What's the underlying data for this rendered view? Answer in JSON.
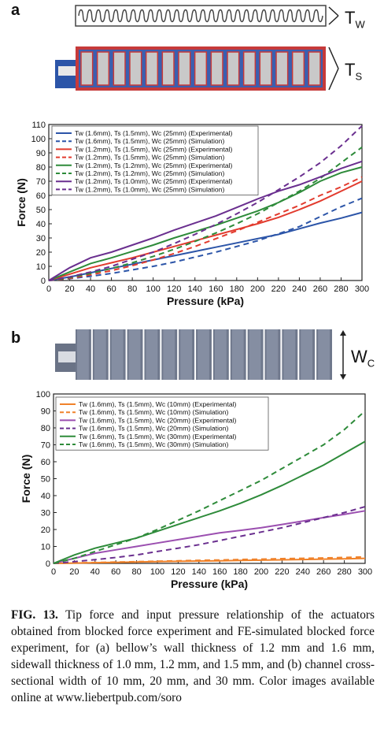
{
  "panel_a": {
    "letter": "a",
    "tw_symbol": "T",
    "tw_sub": "W",
    "ts_symbol": "T",
    "ts_sub": "S"
  },
  "panel_b": {
    "letter": "b",
    "wc_symbol": "W",
    "wc_sub": "C"
  },
  "chart_data": [
    {
      "type": "line",
      "xlabel": "Pressure (kPa)",
      "ylabel": "Force (N)",
      "xlim": [
        0,
        300
      ],
      "ylim": [
        0,
        110
      ],
      "xticks": [
        "0",
        "20",
        "40",
        "60",
        "80",
        "100",
        "120",
        "140",
        "160",
        "180",
        "200",
        "220",
        "240",
        "260",
        "280",
        "300"
      ],
      "yticks": [
        "0",
        "10",
        "20",
        "30",
        "40",
        "50",
        "60",
        "70",
        "80",
        "90",
        "100",
        "110"
      ],
      "legend_position": "top-left",
      "series": [
        {
          "name": "Tw (1.6mm), Ts (1.5mm), Wc (25mm) (Experimental)",
          "color": "#2c55a8",
          "dash": false,
          "x": [
            0,
            20,
            40,
            60,
            80,
            100,
            120,
            140,
            160,
            180,
            200,
            220,
            240,
            260,
            280,
            300
          ],
          "y": [
            0,
            2.5,
            5.5,
            8.5,
            11.5,
            14.5,
            17.5,
            20.5,
            23.5,
            26.5,
            29.5,
            32.5,
            36.5,
            40.5,
            44,
            48
          ]
        },
        {
          "name": "Tw (1.6mm), Ts (1.5mm), Wc (25mm) (Simulation)",
          "color": "#2c55a8",
          "dash": true,
          "x": [
            0,
            20,
            40,
            60,
            80,
            100,
            120,
            140,
            160,
            180,
            200,
            220,
            240,
            260,
            280,
            300
          ],
          "y": [
            0,
            1.3,
            3,
            5,
            7.5,
            10,
            13,
            16.5,
            20,
            24,
            28,
            33,
            38,
            45,
            52,
            58
          ]
        },
        {
          "name": "Tw (1.2mm), Ts (1.5mm), Wc (25mm) (Experimental)",
          "color": "#e23b2e",
          "dash": false,
          "x": [
            0,
            20,
            40,
            60,
            80,
            100,
            120,
            140,
            160,
            180,
            200,
            220,
            240,
            260,
            280,
            300
          ],
          "y": [
            0,
            4.5,
            9,
            12.5,
            16,
            20,
            24,
            28,
            32,
            36,
            40,
            44.5,
            50,
            56,
            63,
            70
          ]
        },
        {
          "name": "Tw (1.2mm), Ts (1.5mm), Wc (25mm) (Simulation)",
          "color": "#e23b2e",
          "dash": true,
          "x": [
            0,
            20,
            40,
            60,
            80,
            100,
            120,
            140,
            160,
            180,
            200,
            220,
            240,
            260,
            280,
            300
          ],
          "y": [
            0,
            1.5,
            4,
            7,
            10.5,
            14.5,
            19,
            24,
            29.5,
            35,
            41,
            47,
            53,
            60,
            66,
            73
          ]
        },
        {
          "name": "Tw (1.2mm), Ts (1.2mm), Wc (25mm) (Experimental)",
          "color": "#2e8b3a",
          "dash": false,
          "x": [
            0,
            20,
            40,
            60,
            80,
            100,
            120,
            140,
            160,
            180,
            200,
            220,
            240,
            260,
            280,
            300
          ],
          "y": [
            0,
            6,
            12,
            16,
            20.5,
            25,
            30,
            34.5,
            39,
            44,
            49,
            55,
            62,
            70,
            76,
            80
          ]
        },
        {
          "name": "Tw (1.2mm), Ts (1.2mm), Wc (25mm) (Simulation)",
          "color": "#2e8b3a",
          "dash": true,
          "x": [
            0,
            20,
            40,
            60,
            80,
            100,
            120,
            140,
            160,
            180,
            200,
            220,
            240,
            260,
            280,
            300
          ],
          "y": [
            0,
            2,
            5,
            8.5,
            12.5,
            17,
            22,
            27.5,
            33.5,
            40,
            47,
            55,
            63,
            72,
            83,
            94
          ]
        },
        {
          "name": "Tw (1.2mm), Ts (1.0mm), Wc (25mm) (Experimental)",
          "color": "#6a2f8f",
          "dash": false,
          "x": [
            0,
            20,
            40,
            60,
            80,
            100,
            120,
            140,
            160,
            180,
            200,
            220,
            240,
            260,
            280,
            300
          ],
          "y": [
            0,
            9,
            16,
            20,
            25,
            30,
            35.5,
            40.5,
            45.5,
            51.5,
            57.5,
            63,
            67.5,
            73,
            79,
            84
          ]
        },
        {
          "name": "Tw (1.2mm), Ts (1.0mm), Wc (25mm) (Simulation)",
          "color": "#6a2f8f",
          "dash": true,
          "x": [
            0,
            20,
            40,
            60,
            80,
            100,
            120,
            140,
            160,
            180,
            200,
            220,
            240,
            260,
            280,
            300
          ],
          "y": [
            0,
            2.5,
            6,
            10,
            15,
            20,
            26,
            32.5,
            39.5,
            47,
            55,
            64,
            73,
            83,
            95,
            109
          ]
        }
      ]
    },
    {
      "type": "line",
      "xlabel": "Pressure (kPa)",
      "ylabel": "Force (N)",
      "xlim": [
        0,
        300
      ],
      "ylim": [
        0,
        100
      ],
      "xticks": [
        "0",
        "20",
        "40",
        "60",
        "80",
        "100",
        "120",
        "140",
        "160",
        "180",
        "200",
        "220",
        "240",
        "260",
        "280",
        "300"
      ],
      "yticks": [
        "0",
        "10",
        "20",
        "30",
        "40",
        "50",
        "60",
        "70",
        "80",
        "90",
        "100"
      ],
      "legend_position": "top-left",
      "series": [
        {
          "name": "Tw (1.6mm), Ts (1.5mm), Wc (10mm) (Experimental)",
          "color": "#f0822a",
          "dash": false,
          "x": [
            0,
            20,
            40,
            60,
            80,
            100,
            120,
            140,
            160,
            180,
            200,
            220,
            240,
            260,
            280,
            300
          ],
          "y": [
            0,
            0.2,
            0.4,
            0.6,
            0.8,
            1,
            1.2,
            1.4,
            1.5,
            1.7,
            1.9,
            2.1,
            2.3,
            2.5,
            2.7,
            3
          ]
        },
        {
          "name": "Tw (1.6mm), Ts (1.5mm), Wc (10mm) (Simulation)",
          "color": "#f0822a",
          "dash": true,
          "x": [
            0,
            20,
            40,
            60,
            80,
            100,
            120,
            140,
            160,
            180,
            200,
            220,
            240,
            260,
            280,
            300
          ],
          "y": [
            0,
            0.3,
            0.5,
            0.8,
            1,
            1.3,
            1.5,
            1.8,
            2,
            2.3,
            2.5,
            2.8,
            3,
            3.2,
            3.5,
            3.8
          ]
        },
        {
          "name": "Tw (1.6mm), Ts (1.5mm), Wc (20mm) (Experimental)",
          "color": "#9b4fb0",
          "dash": false,
          "x": [
            0,
            20,
            40,
            60,
            80,
            100,
            120,
            140,
            160,
            180,
            200,
            220,
            240,
            260,
            280,
            300
          ],
          "y": [
            0,
            3,
            6,
            8,
            10,
            12,
            14,
            16,
            18,
            19.5,
            21,
            23,
            25,
            27,
            29,
            31
          ]
        },
        {
          "name": "Tw (1.6mm), Ts (1.5mm), Wc (20mm) (Simulation)",
          "color": "#6a2f8f",
          "dash": true,
          "x": [
            0,
            20,
            40,
            60,
            80,
            100,
            120,
            140,
            160,
            180,
            200,
            220,
            240,
            260,
            280,
            300
          ],
          "y": [
            0,
            1,
            2.2,
            3.5,
            5,
            7,
            9,
            11,
            13.5,
            16,
            18.5,
            21,
            24,
            27,
            30,
            33.5
          ]
        },
        {
          "name": "Tw (1.6mm), Ts (1.5mm), Wc (30mm) (Experimental)",
          "color": "#2e8b3a",
          "dash": false,
          "x": [
            0,
            20,
            40,
            60,
            80,
            100,
            120,
            140,
            160,
            180,
            200,
            220,
            240,
            260,
            280,
            300
          ],
          "y": [
            0,
            5,
            9,
            12,
            15,
            19,
            23,
            27,
            31,
            35.5,
            40.5,
            46,
            52,
            58,
            65,
            72
          ]
        },
        {
          "name": "Tw (1.6mm), Ts (1.5mm), Wc (30mm) (Simulation)",
          "color": "#2e8b3a",
          "dash": true,
          "x": [
            0,
            20,
            40,
            60,
            80,
            100,
            120,
            140,
            160,
            180,
            200,
            220,
            240,
            260,
            280,
            300
          ],
          "y": [
            0,
            3,
            7,
            11,
            15,
            20,
            25.5,
            31,
            37,
            43,
            49,
            56,
            63,
            70,
            79,
            90
          ]
        }
      ]
    }
  ],
  "caption": {
    "lead": "FIG. 13.",
    "text": "Tip force and input pressure relationship of the actuators obtained from blocked force experiment and FE-simulated blocked force experiment, for (a) bellow’s wall thickness of 1.2 mm and 1.6 mm, sidewall thickness of 1.0 mm, 1.2 mm, and 1.5 mm, and (b) channel cross-sectional width of 10 mm, 20 mm, and 30 mm. Color images available online at www.liebertpub.com/soro"
  }
}
